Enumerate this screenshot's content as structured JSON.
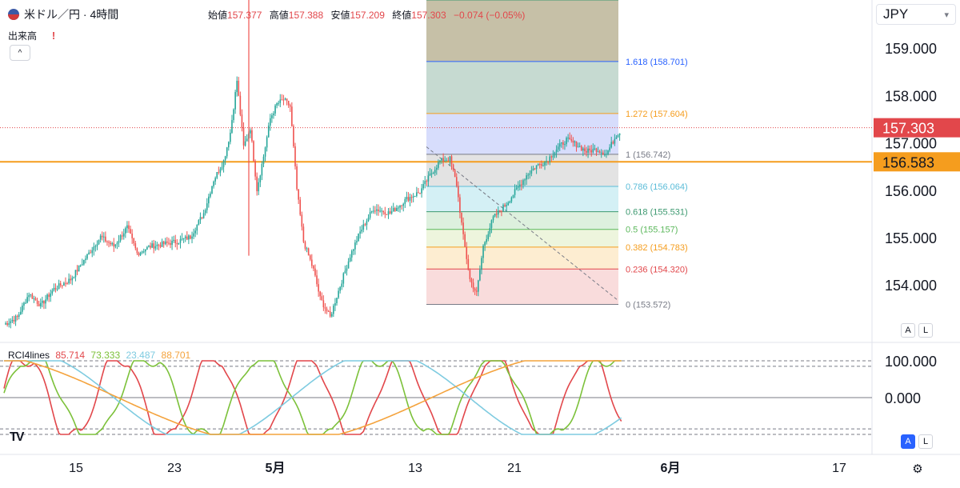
{
  "header": {
    "symbol": "米ドル／円 · 4時間",
    "ohlc": {
      "open_label": "始値",
      "open": "157.377",
      "high_label": "高値",
      "high": "157.388",
      "low_label": "安値",
      "low": "157.209",
      "close_label": "終値",
      "close": "157.303",
      "change": "−0.074 (−0.05%)"
    },
    "volume_label": "出来高",
    "alert_glyph": "!",
    "collapse_glyph": "^"
  },
  "currency_select": {
    "value": "JPY"
  },
  "scale_buttons": {
    "auto": "A",
    "log": "L"
  },
  "indicator": {
    "name": "RCI4lines",
    "values": [
      "85.714",
      "73.333",
      "23.487",
      "88.701"
    ],
    "colors": [
      "#e2474b",
      "#7cc13a",
      "#7ecbe0",
      "#f4a33d"
    ],
    "axis_labels": [
      "100.000",
      "0.000"
    ]
  },
  "logo_text": "TV",
  "gear_glyph": "⚙",
  "colors": {
    "up": "#26a69a",
    "down": "#ef5350",
    "hline": "#f59d1e",
    "price_tag": "#e2474b"
  },
  "chart_data": {
    "type": "candlestick",
    "price_axis": {
      "labels": [
        "159.000",
        "158.000",
        "157.000",
        "156.000",
        "155.000",
        "154.000"
      ],
      "ticks": [
        159,
        158,
        157,
        156,
        155,
        154
      ]
    },
    "time_axis": {
      "labels": [
        "15",
        "23",
        "5月",
        "13",
        "21",
        "6月",
        "17"
      ]
    },
    "last_price": "157.303",
    "horizontal_line": "156.583",
    "fibonacci": [
      {
        "ratio": "1.618",
        "price": "158.701",
        "label": "1.618 (158.701)",
        "color": "#2962ff"
      },
      {
        "ratio": "1.272",
        "price": "157.604",
        "label": "1.272 (157.604)",
        "color": "#f59d1e"
      },
      {
        "ratio": "1",
        "price": "156.742",
        "label": "1 (156.742)",
        "color": "#787b86"
      },
      {
        "ratio": "0.786",
        "price": "156.064",
        "label": "0.786 (156.064)",
        "color": "#5bbcd8"
      },
      {
        "ratio": "0.618",
        "price": "155.531",
        "label": "0.618 (155.531)",
        "color": "#3d9970"
      },
      {
        "ratio": "0.5",
        "price": "155.157",
        "label": "0.5 (155.157)",
        "color": "#5cb85c"
      },
      {
        "ratio": "0.382",
        "price": "154.783",
        "label": "0.382 (154.783)",
        "color": "#f59d1e"
      },
      {
        "ratio": "0.236",
        "price": "154.320",
        "label": "0.236 (154.320)",
        "color": "#e2474b"
      },
      {
        "ratio": "0",
        "price": "153.572",
        "label": "0 (153.572)",
        "color": "#787b86"
      }
    ],
    "close_path": [
      [
        0,
        153.15
      ],
      [
        8,
        153.3
      ],
      [
        15,
        153.8
      ],
      [
        22,
        153.55
      ],
      [
        30,
        153.9
      ],
      [
        40,
        154.1
      ],
      [
        50,
        154.6
      ],
      [
        58,
        155.0
      ],
      [
        66,
        154.8
      ],
      [
        74,
        155.2
      ],
      [
        80,
        154.65
      ],
      [
        88,
        154.8
      ],
      [
        96,
        154.85
      ],
      [
        104,
        154.9
      ],
      [
        112,
        155.0
      ],
      [
        120,
        155.5
      ],
      [
        126,
        156.2
      ],
      [
        132,
        156.6
      ],
      [
        136,
        157.2
      ],
      [
        140,
        158.3
      ],
      [
        144,
        156.9
      ],
      [
        148,
        157.3
      ],
      [
        152,
        156.0
      ],
      [
        156,
        156.7
      ],
      [
        160,
        157.5
      ],
      [
        164,
        157.8
      ],
      [
        168,
        157.9
      ],
      [
        172,
        157.75
      ],
      [
        176,
        156.0
      ],
      [
        180,
        154.9
      ],
      [
        186,
        154.3
      ],
      [
        190,
        153.7
      ],
      [
        196,
        153.3
      ],
      [
        200,
        153.75
      ],
      [
        208,
        154.6
      ],
      [
        214,
        155.1
      ],
      [
        222,
        155.6
      ],
      [
        232,
        155.5
      ],
      [
        242,
        155.8
      ],
      [
        250,
        155.95
      ],
      [
        256,
        156.3
      ],
      [
        262,
        156.6
      ],
      [
        268,
        156.65
      ],
      [
        272,
        156.1
      ],
      [
        276,
        155.0
      ],
      [
        280,
        154.1
      ],
      [
        284,
        153.8
      ],
      [
        288,
        154.8
      ],
      [
        294,
        155.4
      ],
      [
        302,
        155.7
      ],
      [
        308,
        156.0
      ],
      [
        314,
        156.3
      ],
      [
        320,
        156.5
      ],
      [
        326,
        156.6
      ],
      [
        332,
        156.85
      ],
      [
        338,
        157.05
      ],
      [
        344,
        156.95
      ],
      [
        350,
        156.8
      ],
      [
        356,
        156.85
      ],
      [
        362,
        156.75
      ],
      [
        368,
        157.15
      ],
      [
        372,
        157.3
      ]
    ]
  }
}
